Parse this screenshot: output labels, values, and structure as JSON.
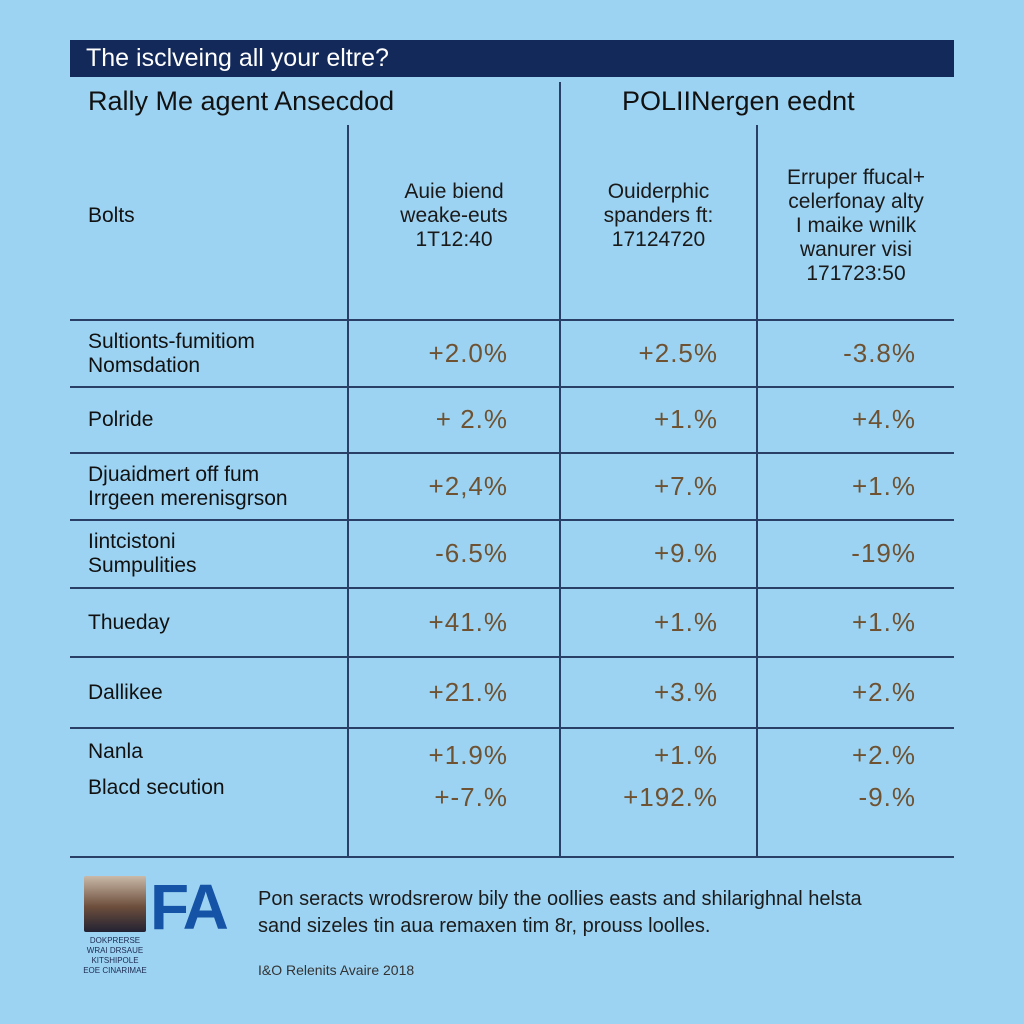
{
  "header": {
    "title": "The isclveing all your eltre?",
    "left_heading": "Rally Me agent Ansecdod",
    "right_heading": "POLIINergen eednt"
  },
  "table": {
    "corner": "Bolts",
    "columns": [
      [
        "Auie biend",
        "weake-euts",
        "1T12:40"
      ],
      [
        "Ouiderphic",
        "spanders ft:",
        "17124720"
      ],
      [
        "Erruper ffucal+",
        "celerfonay alty",
        "I maike wnilk",
        "wanurer visi",
        "171723:50"
      ]
    ],
    "rows": [
      {
        "label": [
          "Sultionts-fumitiom",
          "Nomsdation"
        ],
        "cells": [
          [
            "+2.0%"
          ],
          [
            "+2.5%"
          ],
          [
            "-3.8%"
          ]
        ]
      },
      {
        "label": [
          "Polride"
        ],
        "cells": [
          [
            "+ 2.%"
          ],
          [
            "+1.%"
          ],
          [
            "+4.%"
          ]
        ]
      },
      {
        "label": [
          "Djuaidmert off fum",
          "Irrgeen merenisgrson"
        ],
        "cells": [
          [
            "+2,4%"
          ],
          [
            "+7.%"
          ],
          [
            "+1.%"
          ]
        ]
      },
      {
        "label": [
          "Iintcistoni",
          "Sumpulities"
        ],
        "cells": [
          [
            "-6.5%"
          ],
          [
            "+9.%"
          ],
          [
            "-19%"
          ]
        ]
      },
      {
        "label": [
          "Thueday"
        ],
        "cells": [
          [
            "+41.%"
          ],
          [
            "+1.%"
          ],
          [
            "+1.%"
          ]
        ]
      },
      {
        "label": [
          "Dallikee"
        ],
        "cells": [
          [
            "+21.%"
          ],
          [
            "+3.%"
          ],
          [
            "+2.%"
          ]
        ]
      },
      {
        "label": [
          "Nanla",
          "Blacd secution"
        ],
        "cells": [
          [
            "+1.9%",
            "+-7.%"
          ],
          [
            "+1.%",
            "+192.%"
          ],
          [
            "+2.%",
            "-9.%"
          ]
        ]
      }
    ]
  },
  "footer": {
    "logo": "FA",
    "photo_caption": [
      "DOKPRERSE",
      "WRAI DRSAUE",
      "KITSHIPOLE",
      "EOE CINARIMAE"
    ],
    "text": [
      "Pon seracts wrodsrerow bily the oollies easts and shilarighnal helsta",
      "sand sizeles tin aua remaxen tim 8r, prouss loolles."
    ],
    "credit": "I&O Relenits Avaire 2018"
  }
}
